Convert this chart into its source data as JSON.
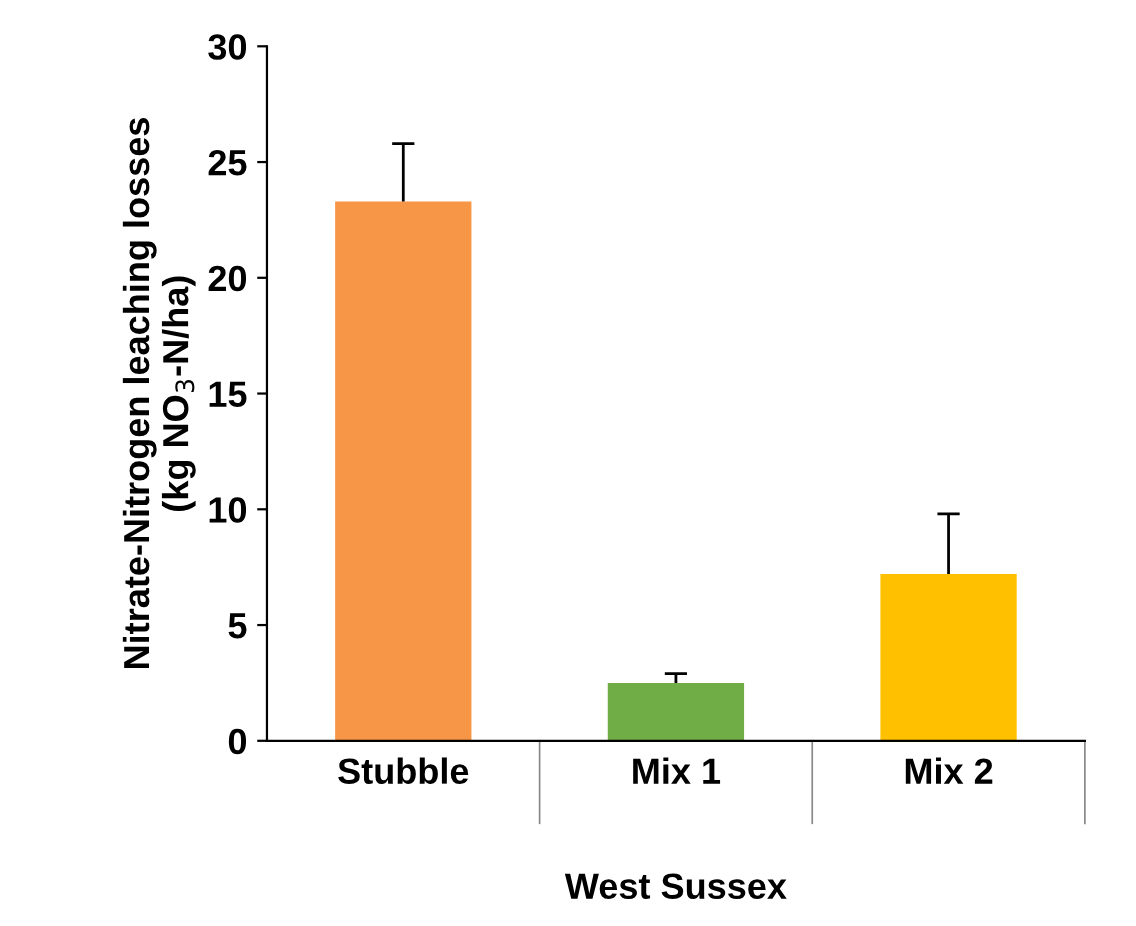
{
  "chart_data": {
    "type": "bar",
    "categories": [
      "Stubble",
      "Mix 1",
      "Mix 2"
    ],
    "values": [
      23.3,
      2.5,
      7.2
    ],
    "colors": [
      "#f79646",
      "#70ad47",
      "#ffc000"
    ],
    "errors": [
      [
        23.3,
        25.8
      ],
      [
        2.5,
        2.9
      ],
      [
        7.2,
        9.8
      ]
    ],
    "xlabel": "West Sussex",
    "ylabel": "Nitrate-Nitrogen leaching losses\n(kg NO$_{3}$-N/ha)",
    "ylim": [
      0,
      30
    ],
    "yticks": [
      0,
      5,
      10,
      15,
      20,
      25,
      30
    ],
    "grid": false,
    "legend": false
  }
}
